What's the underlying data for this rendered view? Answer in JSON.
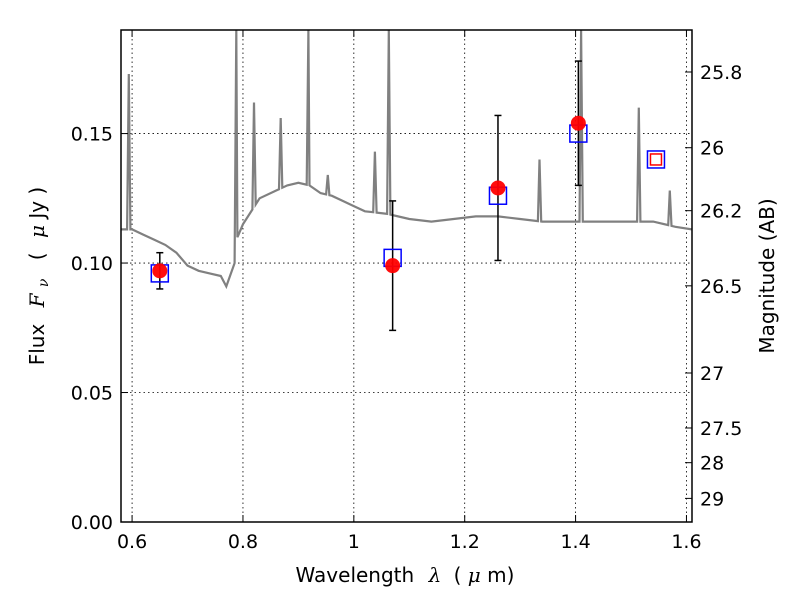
{
  "chart_data": {
    "type": "scatter",
    "xlabel": "Wavelength",
    "xlabel_symbol": "λ",
    "xlabel_unit_open": "(",
    "xlabel_unit_mu": "μ",
    "xlabel_unit_rest": "m)",
    "ylabel": "Flux",
    "ylabel_symbol": "F",
    "ylabel_subscript": "ν",
    "ylabel_unit_open": "(",
    "ylabel_unit_mu": "μ",
    "ylabel_unit_rest": "Jy )",
    "y2label": "Magnitude (AB)",
    "xlim": [
      0.58,
      1.61
    ],
    "ylim": [
      0.0,
      0.19
    ],
    "grid": true,
    "grid_style": "dotted",
    "x_ticks": [
      {
        "value": 0.6,
        "label": "0.6"
      },
      {
        "value": 0.8,
        "label": "0.8"
      },
      {
        "value": 1.0,
        "label": "1"
      },
      {
        "value": 1.2,
        "label": "1.2"
      },
      {
        "value": 1.4,
        "label": "1.4"
      },
      {
        "value": 1.6,
        "label": "1.6"
      }
    ],
    "y_ticks": [
      {
        "value": 0.0,
        "label": "0.00"
      },
      {
        "value": 0.05,
        "label": "0.05"
      },
      {
        "value": 0.1,
        "label": "0.10"
      },
      {
        "value": 0.15,
        "label": "0.15"
      }
    ],
    "y2_ticks": [
      {
        "value": 25.8,
        "label": "25.8"
      },
      {
        "value": 26.0,
        "label": "26"
      },
      {
        "value": 26.2,
        "label": "26.2"
      },
      {
        "value": 26.5,
        "label": "26.5"
      },
      {
        "value": 27.0,
        "label": "27"
      },
      {
        "value": 27.5,
        "label": "27.5"
      },
      {
        "value": 28.0,
        "label": "28"
      },
      {
        "value": 29.0,
        "label": "29"
      }
    ],
    "y2_mag_zeropoint": 23.9,
    "series": [
      {
        "kind": "line",
        "color": "#808080",
        "continuum": [
          [
            0.58,
            0.113
          ],
          [
            0.6,
            0.113
          ],
          [
            0.62,
            0.111
          ],
          [
            0.64,
            0.109
          ],
          [
            0.66,
            0.107
          ],
          [
            0.68,
            0.104
          ],
          [
            0.7,
            0.099
          ],
          [
            0.72,
            0.097
          ],
          [
            0.74,
            0.096
          ],
          [
            0.76,
            0.095
          ],
          [
            0.77,
            0.091
          ],
          [
            0.785,
            0.1
          ],
          [
            0.79,
            0.11
          ],
          [
            0.8,
            0.115
          ],
          [
            0.83,
            0.125
          ],
          [
            0.86,
            0.128
          ],
          [
            0.88,
            0.13
          ],
          [
            0.9,
            0.131
          ],
          [
            0.92,
            0.13
          ],
          [
            0.94,
            0.127
          ],
          [
            0.96,
            0.126
          ],
          [
            0.98,
            0.124
          ],
          [
            1.0,
            0.122
          ],
          [
            1.02,
            0.12
          ],
          [
            1.06,
            0.119
          ],
          [
            1.1,
            0.117
          ],
          [
            1.14,
            0.116
          ],
          [
            1.18,
            0.117
          ],
          [
            1.22,
            0.118
          ],
          [
            1.26,
            0.118
          ],
          [
            1.3,
            0.117
          ],
          [
            1.34,
            0.116
          ],
          [
            1.38,
            0.116
          ],
          [
            1.42,
            0.116
          ],
          [
            1.46,
            0.116
          ],
          [
            1.5,
            0.116
          ],
          [
            1.54,
            0.116
          ],
          [
            1.58,
            0.114
          ],
          [
            1.61,
            0.113
          ]
        ],
        "emission_lines": [
          [
            0.594,
            0.173
          ],
          [
            0.788,
            0.19
          ],
          [
            0.82,
            0.162
          ],
          [
            0.868,
            0.156
          ],
          [
            0.918,
            0.19
          ],
          [
            0.953,
            0.134
          ],
          [
            1.038,
            0.143
          ],
          [
            1.063,
            0.19
          ],
          [
            1.335,
            0.14
          ],
          [
            1.41,
            0.19
          ],
          [
            1.514,
            0.16
          ],
          [
            1.57,
            0.128
          ]
        ]
      },
      {
        "kind": "scatter",
        "marker": "open-square",
        "color": "#0000ff",
        "points": [
          {
            "x": 0.65,
            "y": 0.096
          },
          {
            "x": 1.07,
            "y": 0.102
          },
          {
            "x": 1.26,
            "y": 0.126
          },
          {
            "x": 1.405,
            "y": 0.15
          },
          {
            "x": 1.545,
            "y": 0.14
          }
        ]
      },
      {
        "kind": "scatter",
        "marker": "filled-circle",
        "color": "#ff0000",
        "points": [
          {
            "x": 0.65,
            "y": 0.097,
            "yerr": 0.007
          },
          {
            "x": 1.07,
            "y": 0.099,
            "yerr": 0.025
          },
          {
            "x": 1.26,
            "y": 0.129,
            "yerr": 0.028
          },
          {
            "x": 1.405,
            "y": 0.154,
            "yerr": 0.024
          }
        ]
      },
      {
        "kind": "scatter",
        "marker": "open-square-small",
        "color": "#ff0000",
        "points": [
          {
            "x": 1.545,
            "y": 0.14
          }
        ]
      }
    ]
  }
}
